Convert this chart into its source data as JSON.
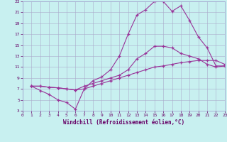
{
  "xlabel": "Windchill (Refroidissement éolien,°C)",
  "bg_color": "#c8f0f0",
  "line_color": "#993399",
  "grid_color": "#aaaacc",
  "xlim": [
    0,
    23
  ],
  "ylim": [
    3,
    23
  ],
  "xticks": [
    0,
    1,
    2,
    3,
    4,
    5,
    6,
    7,
    8,
    9,
    10,
    11,
    12,
    13,
    14,
    15,
    16,
    17,
    18,
    19,
    20,
    21,
    22,
    23
  ],
  "yticks": [
    3,
    5,
    7,
    9,
    11,
    13,
    15,
    17,
    19,
    21,
    23
  ],
  "line1_x": [
    1,
    2,
    3,
    4,
    5,
    6,
    7,
    8,
    9,
    10,
    11,
    12,
    13,
    14,
    15,
    16,
    17,
    18,
    19,
    20,
    21,
    22,
    23
  ],
  "line1_y": [
    7.5,
    6.7,
    6.0,
    5.0,
    4.5,
    3.3,
    7.0,
    8.5,
    9.2,
    10.5,
    13.0,
    17.0,
    20.5,
    21.5,
    23.0,
    23.0,
    21.2,
    22.2,
    19.5,
    16.5,
    14.5,
    11.2,
    11.2
  ],
  "line2_x": [
    1,
    2,
    3,
    4,
    5,
    6,
    7,
    8,
    9,
    10,
    11,
    12,
    13,
    14,
    15,
    16,
    17,
    18,
    19,
    20,
    21,
    22,
    23
  ],
  "line2_y": [
    7.5,
    7.5,
    7.3,
    7.2,
    7.0,
    6.8,
    7.5,
    8.0,
    8.5,
    9.0,
    9.5,
    10.5,
    12.5,
    13.5,
    14.8,
    14.8,
    14.5,
    13.5,
    13.0,
    12.5,
    11.5,
    11.0,
    11.2
  ],
  "line3_x": [
    1,
    2,
    3,
    4,
    5,
    6,
    7,
    8,
    9,
    10,
    11,
    12,
    13,
    14,
    15,
    16,
    17,
    18,
    19,
    20,
    21,
    22,
    23
  ],
  "line3_y": [
    7.5,
    7.5,
    7.3,
    7.2,
    7.0,
    6.8,
    7.0,
    7.5,
    8.0,
    8.5,
    9.0,
    9.5,
    10.0,
    10.5,
    11.0,
    11.2,
    11.5,
    11.8,
    12.0,
    12.2,
    12.2,
    12.2,
    11.5
  ]
}
